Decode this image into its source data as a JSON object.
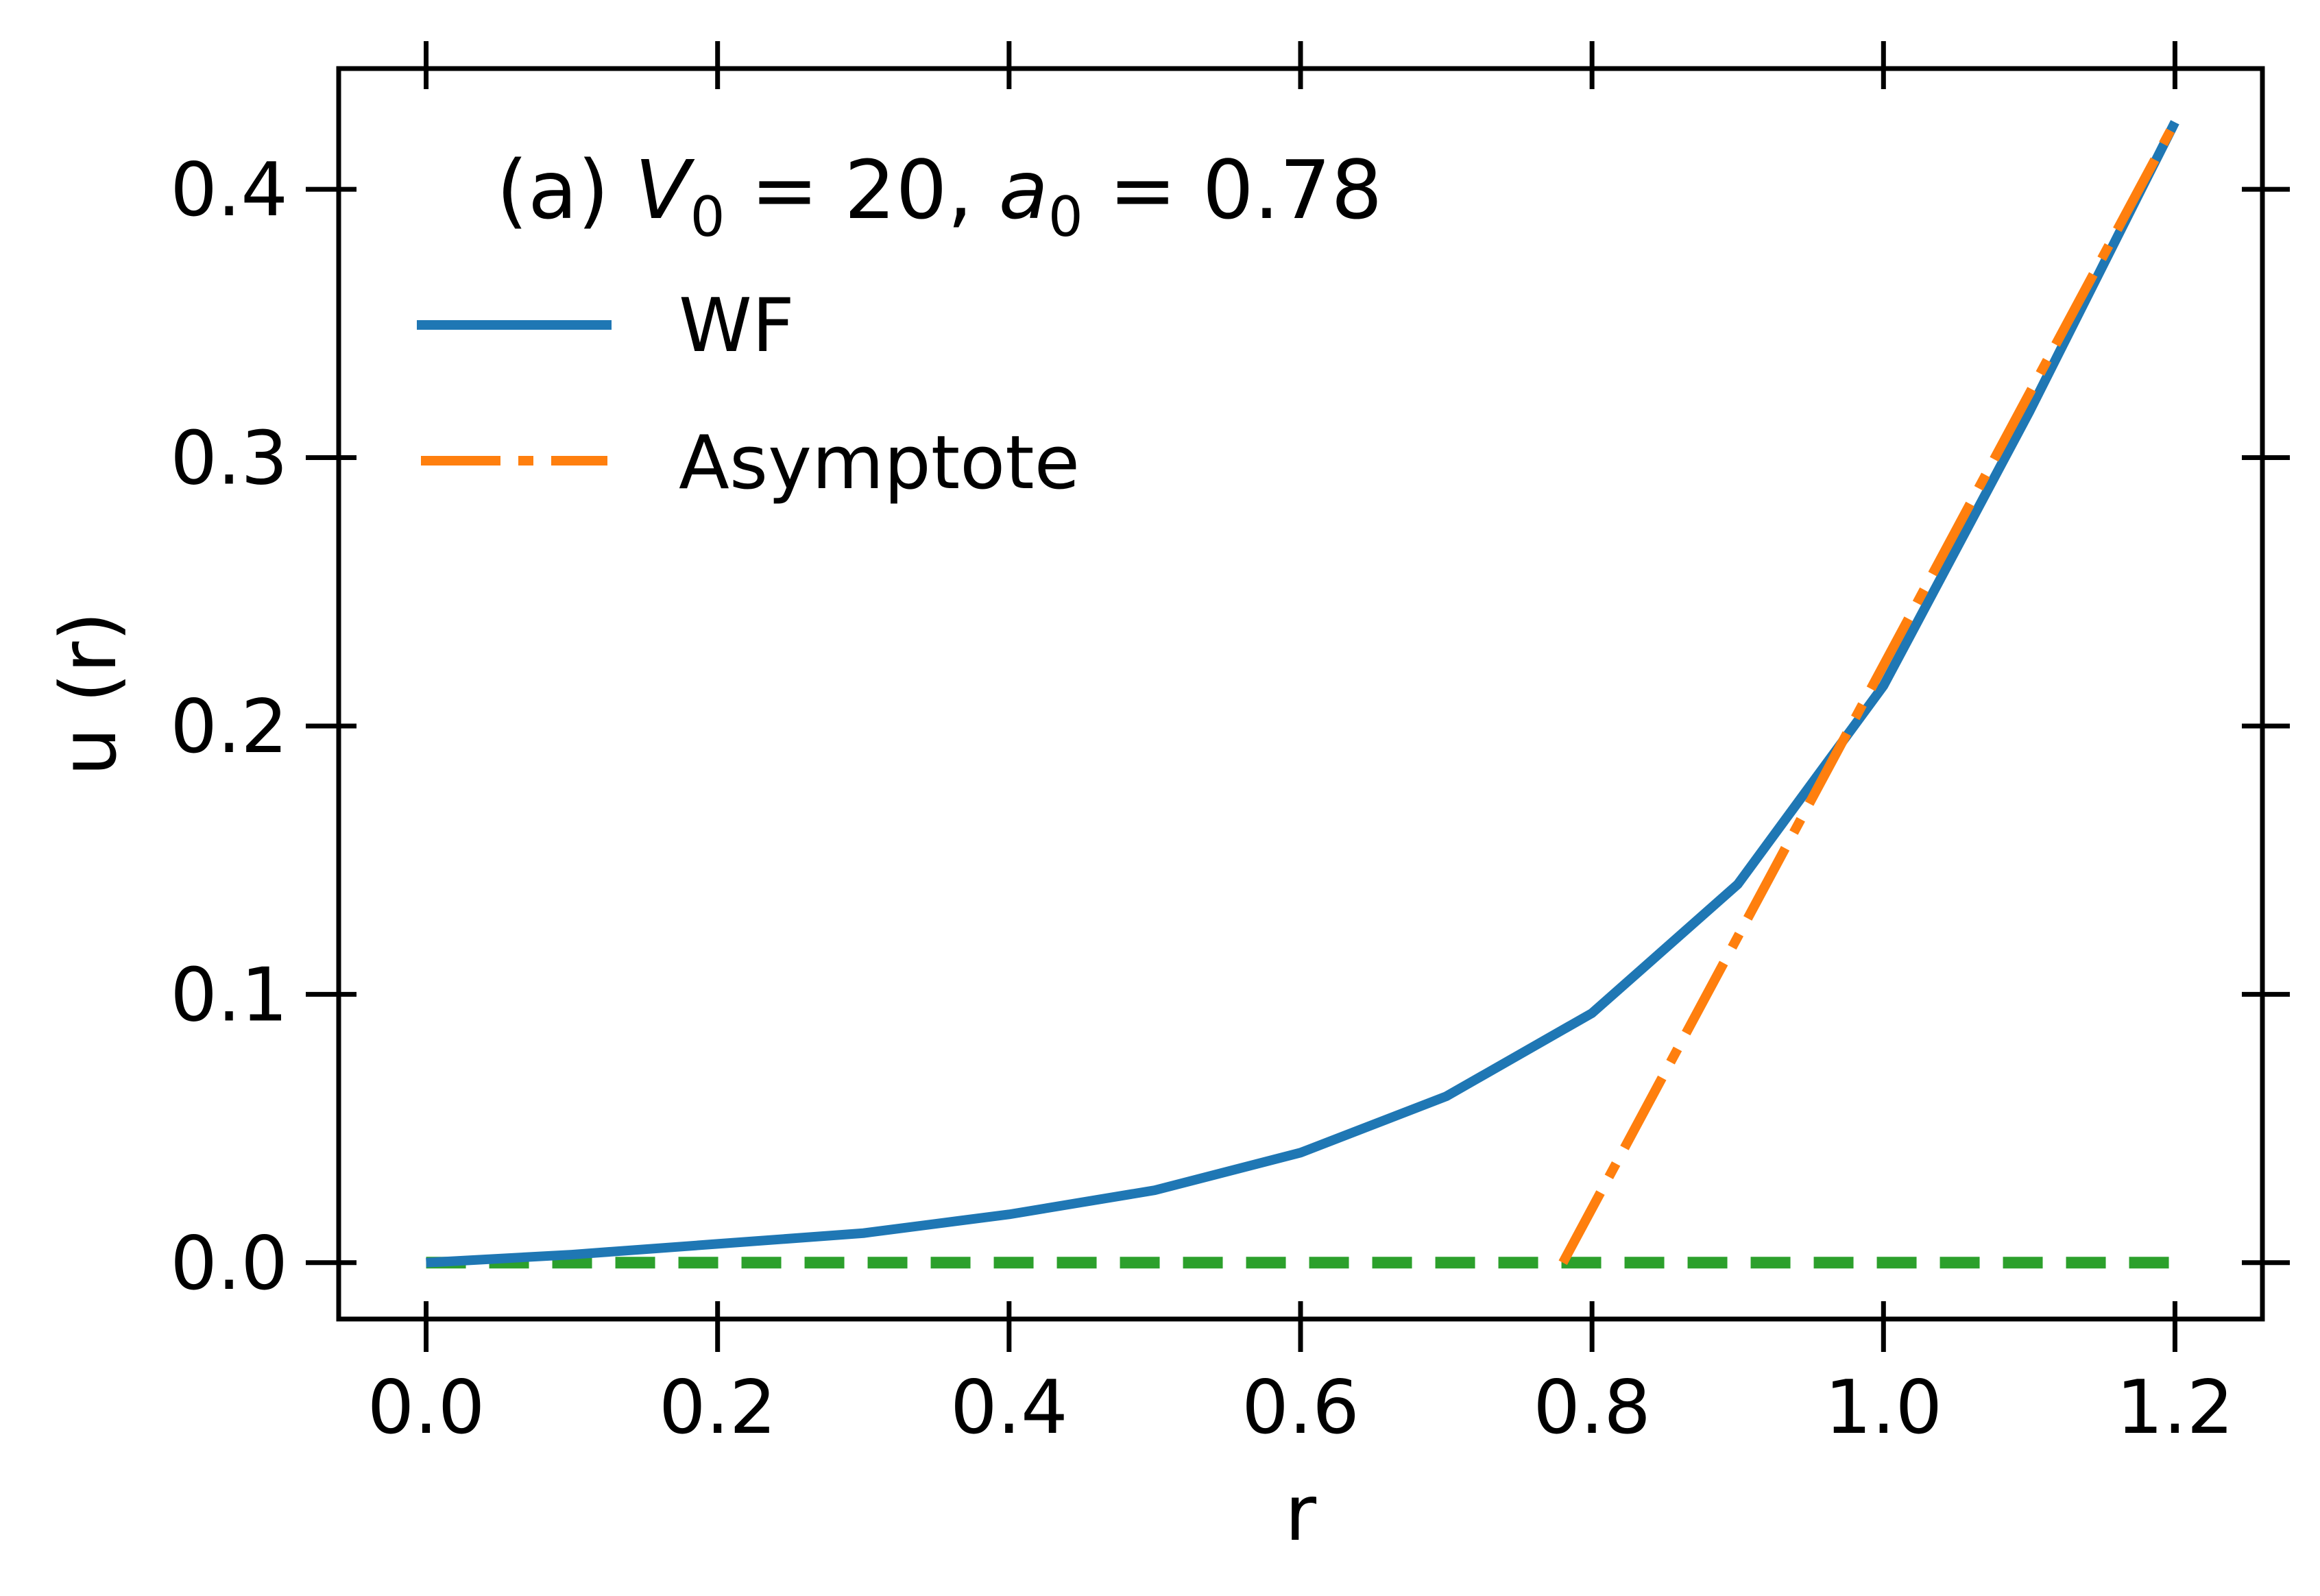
{
  "chart_data": {
    "type": "line",
    "title": "",
    "xlabel": "r",
    "ylabel": "u (r)",
    "xlim": [
      -0.06,
      1.26
    ],
    "ylim": [
      -0.021,
      0.445
    ],
    "xticks": [
      0.0,
      0.2,
      0.4,
      0.6,
      0.8,
      1.0,
      1.2
    ],
    "xtick_labels": [
      "0.0",
      "0.2",
      "0.4",
      "0.6",
      "0.8",
      "1.0",
      "1.2"
    ],
    "yticks": [
      0.0,
      0.1,
      0.2,
      0.3,
      0.4
    ],
    "ytick_labels": [
      "0.0",
      "0.1",
      "0.2",
      "0.3",
      "0.4"
    ],
    "grid": false,
    "legend_position": "top-left",
    "annotation": {
      "prefix": "(a) ",
      "v_symbol": "V",
      "v_subscript": "0",
      "v_equals": " = 20, ",
      "a_symbol": "a",
      "a_subscript": "0",
      "a_equals": " = 0.78"
    },
    "series": [
      {
        "name": "WF",
        "style": "solid",
        "color": "#1f77b4",
        "x": [
          0.0,
          0.1,
          0.2,
          0.3,
          0.4,
          0.5,
          0.6,
          0.7,
          0.8,
          0.9,
          1.0,
          1.1,
          1.2
        ],
        "y": [
          0.0,
          0.003,
          0.007,
          0.011,
          0.018,
          0.027,
          0.041,
          0.062,
          0.093,
          0.141,
          0.215,
          0.317,
          0.425
        ]
      },
      {
        "name": "Asymptote",
        "style": "dashdot",
        "color": "#ff7f0e",
        "x": [
          0.78,
          1.2
        ],
        "y": [
          0.0,
          0.425
        ]
      },
      {
        "name": "",
        "style": "dashed",
        "color": "#2ca02c",
        "x": [
          0.0,
          1.2
        ],
        "y": [
          0.0,
          0.0
        ]
      }
    ]
  }
}
